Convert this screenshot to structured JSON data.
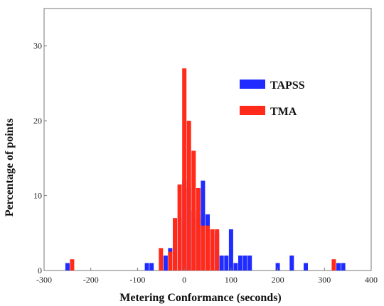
{
  "colors": {
    "tapss": "#1f2bff",
    "tma": "#ff2a1a"
  },
  "chart_data": {
    "type": "bar",
    "xlabel": "Metering Conformance (seconds)",
    "ylabel": "Percentage of points",
    "xlim": [
      -300,
      400
    ],
    "ylim": [
      0,
      35
    ],
    "xticks": [
      -300,
      -200,
      -100,
      0,
      100,
      200,
      300,
      400
    ],
    "yticks": [
      0,
      10,
      20,
      30
    ],
    "legend_position": "upper-right",
    "bin_width": 10,
    "series": [
      {
        "name": "TAPSS",
        "color": "#1f2bff",
        "points": [
          [
            -250,
            1
          ],
          [
            -80,
            1
          ],
          [
            -70,
            1
          ],
          [
            -40,
            2
          ],
          [
            -30,
            3
          ],
          [
            -10,
            7
          ],
          [
            0,
            12
          ],
          [
            10,
            11
          ],
          [
            20,
            8
          ],
          [
            30,
            7
          ],
          [
            40,
            12
          ],
          [
            50,
            7.5
          ],
          [
            60,
            5.5
          ],
          [
            70,
            5
          ],
          [
            80,
            2
          ],
          [
            90,
            2
          ],
          [
            100,
            5.5
          ],
          [
            110,
            1
          ],
          [
            120,
            2
          ],
          [
            130,
            2
          ],
          [
            140,
            2
          ],
          [
            200,
            1
          ],
          [
            230,
            2
          ],
          [
            260,
            1
          ],
          [
            330,
            1
          ],
          [
            340,
            1
          ]
        ]
      },
      {
        "name": "TMA",
        "color": "#ff2a1a",
        "points": [
          [
            -240,
            1.5
          ],
          [
            -50,
            3
          ],
          [
            -30,
            2.5
          ],
          [
            -20,
            7
          ],
          [
            -10,
            11.5
          ],
          [
            0,
            27
          ],
          [
            10,
            20
          ],
          [
            20,
            16
          ],
          [
            30,
            11
          ],
          [
            40,
            6
          ],
          [
            50,
            6
          ],
          [
            60,
            5.5
          ],
          [
            70,
            5.5
          ],
          [
            320,
            1.5
          ]
        ]
      }
    ]
  }
}
